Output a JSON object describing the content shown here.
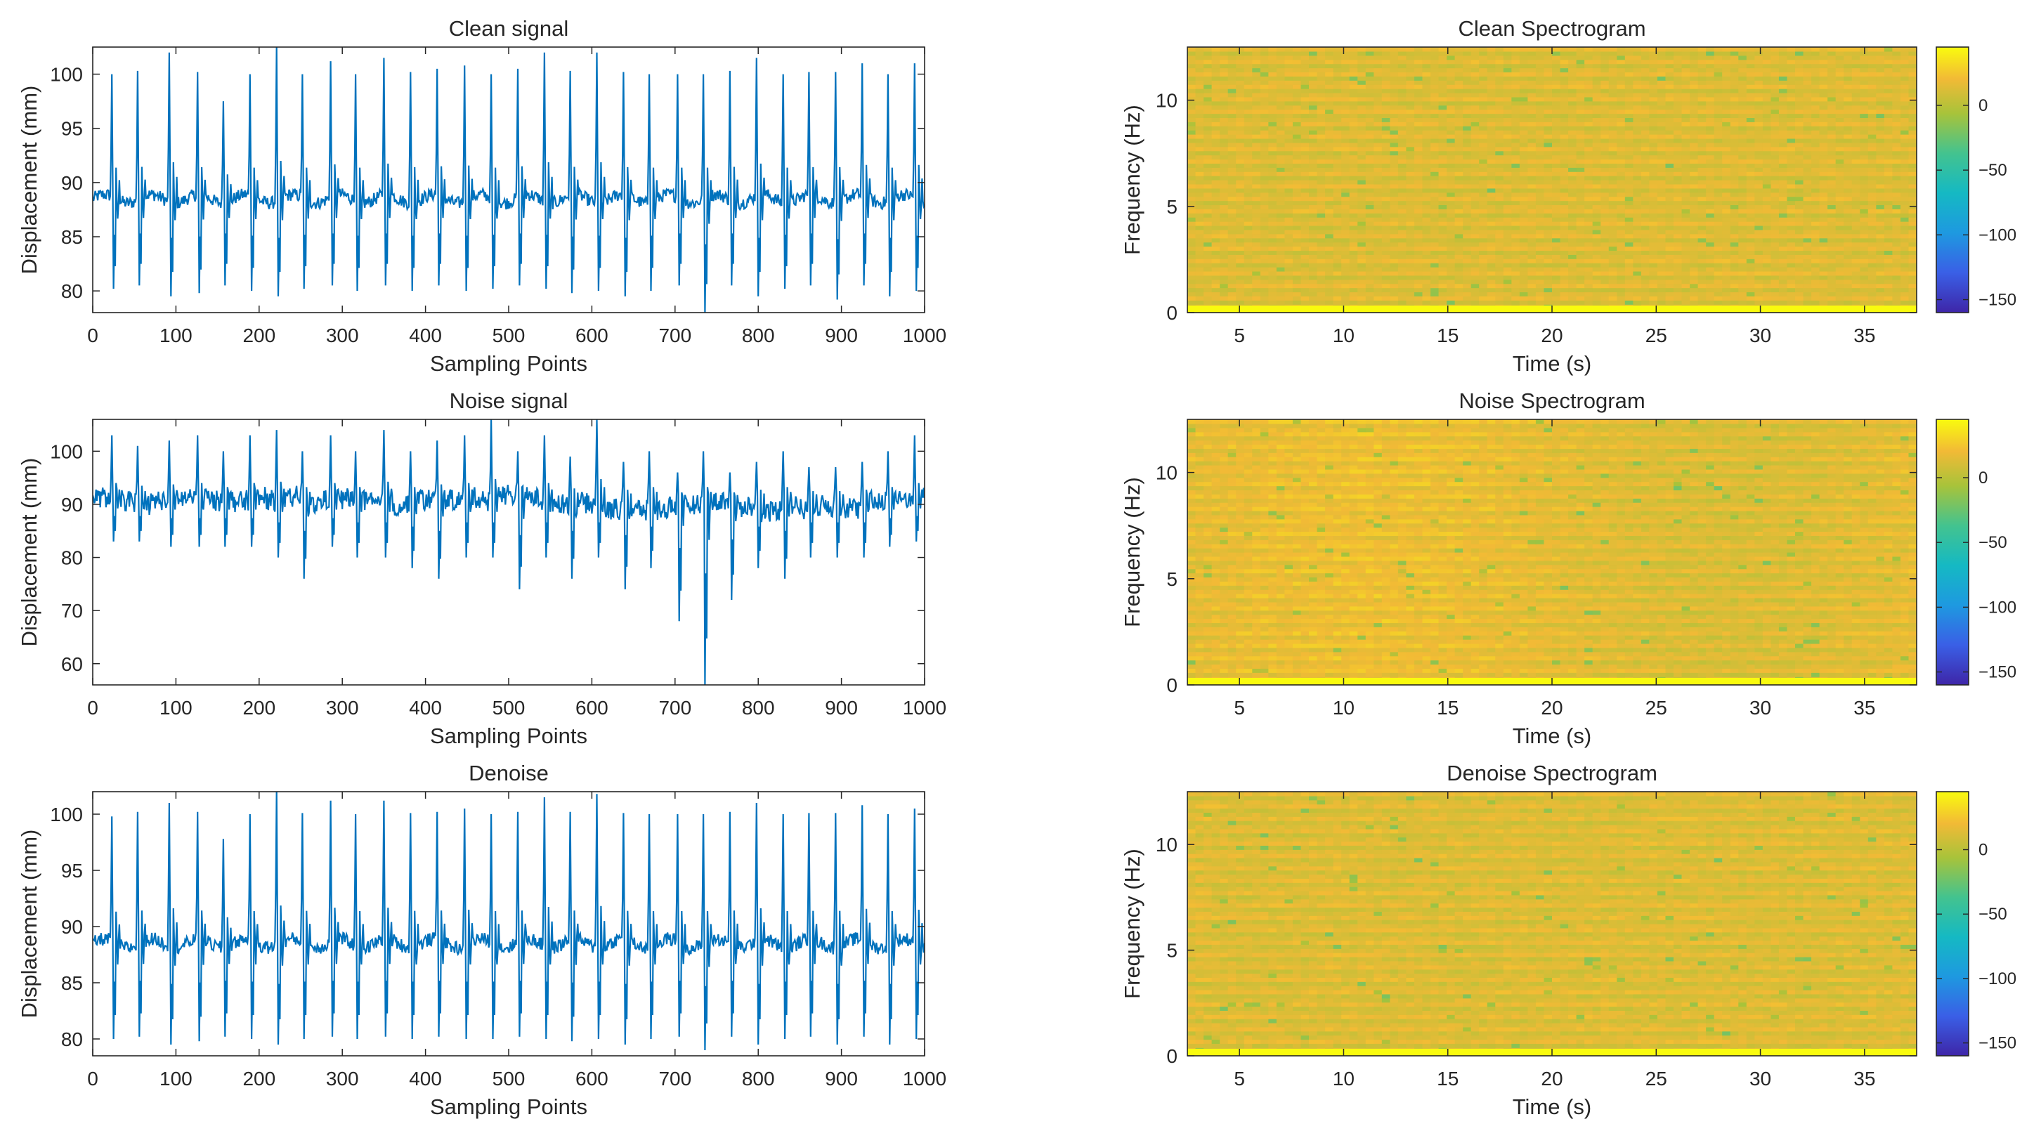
{
  "colors": {
    "line": "#0072BD",
    "axis": "#262626",
    "colormap": "parula"
  },
  "chart_data": [
    {
      "id": "clean-signal",
      "type": "line",
      "title": "Clean signal",
      "xlabel": "Sampling Points",
      "ylabel": "Displacement (mm)",
      "xlim": [
        0,
        1000
      ],
      "ylim": [
        78,
        102.5
      ],
      "xticks": [
        0,
        100,
        200,
        300,
        400,
        500,
        600,
        700,
        800,
        900,
        1000
      ],
      "yticks": [
        80,
        85,
        90,
        95,
        100
      ],
      "signal": {
        "baseline": 88.5,
        "peak_positions": [
          25,
          56,
          94,
          128,
          159,
          191,
          223,
          254,
          288,
          318,
          352,
          384,
          416,
          449,
          481,
          513,
          545,
          576,
          608,
          640,
          671,
          705,
          736,
          768,
          800,
          832,
          863,
          895,
          927,
          958,
          990
        ],
        "peak_highs": [
          100,
          100.3,
          102,
          100.2,
          97.5,
          100,
          102.5,
          100,
          101.2,
          100,
          101.5,
          100.2,
          100.5,
          100.8,
          100,
          100.5,
          102,
          100.3,
          102,
          100.2,
          100,
          100,
          100,
          100.3,
          101.5,
          100,
          100.2,
          100.2,
          101,
          100,
          101
        ],
        "trough_lows": [
          80.2,
          80.5,
          79.5,
          79.8,
          80.5,
          80,
          79.5,
          80.2,
          80.5,
          80,
          80.5,
          80,
          80.5,
          80,
          80.2,
          80.5,
          80.2,
          79.8,
          80,
          79.5,
          80,
          80.5,
          78,
          80.5,
          79.5,
          80.2,
          80.5,
          79.2,
          80.5,
          79.5,
          80
        ]
      }
    },
    {
      "id": "clean-spectrogram",
      "type": "heatmap",
      "title": "Clean Spectrogram",
      "xlabel": "Time (s)",
      "ylabel": "Frequency (Hz)",
      "xlim": [
        2.5,
        37.5
      ],
      "ylim": [
        0,
        12.5
      ],
      "xticks": [
        5,
        10,
        15,
        20,
        25,
        30,
        35
      ],
      "yticks": [
        0,
        5,
        10
      ],
      "colorbar": {
        "range": [
          -160,
          45
        ],
        "ticks": [
          0,
          -50,
          -100,
          -150
        ]
      }
    },
    {
      "id": "noise-signal",
      "type": "line",
      "title": "Noise signal",
      "xlabel": "Sampling Points",
      "ylabel": "Displacement (mm)",
      "xlim": [
        0,
        1000
      ],
      "ylim": [
        56,
        106
      ],
      "xticks": [
        0,
        100,
        200,
        300,
        400,
        500,
        600,
        700,
        800,
        900,
        1000
      ],
      "yticks": [
        60,
        70,
        80,
        90,
        100
      ],
      "signal": {
        "baseline": 91,
        "peak_positions": [
          25,
          56,
          94,
          128,
          159,
          191,
          223,
          254,
          288,
          318,
          352,
          384,
          416,
          449,
          481,
          513,
          545,
          576,
          608,
          640,
          671,
          705,
          736,
          768,
          800,
          832,
          863,
          895,
          927,
          958,
          990
        ],
        "peak_highs": [
          103,
          101,
          102,
          103,
          100,
          103,
          104,
          100,
          103,
          100,
          104,
          100,
          102,
          103,
          106,
          100,
          103,
          99,
          106,
          98,
          100,
          96,
          100,
          96,
          98,
          100,
          97,
          97,
          98,
          100,
          103
        ],
        "trough_lows": [
          83,
          83,
          82,
          82,
          82,
          82,
          80,
          76,
          82,
          80,
          80,
          78,
          76,
          80,
          80,
          74,
          80,
          76,
          80,
          74,
          78,
          68,
          56,
          72,
          78,
          76,
          80,
          80,
          80,
          82,
          83
        ]
      }
    },
    {
      "id": "noise-spectrogram",
      "type": "heatmap",
      "title": "Noise Spectrogram",
      "xlabel": "Time (s)",
      "ylabel": "Frequency (Hz)",
      "xlim": [
        2.5,
        37.5
      ],
      "ylim": [
        0,
        12.5
      ],
      "xticks": [
        5,
        10,
        15,
        20,
        25,
        30,
        35
      ],
      "yticks": [
        0,
        5,
        10
      ],
      "colorbar": {
        "range": [
          -160,
          45
        ],
        "ticks": [
          0,
          -50,
          -100,
          -150
        ]
      }
    },
    {
      "id": "denoise-signal",
      "type": "line",
      "title": "Denoise",
      "xlabel": "Sampling Points",
      "ylabel": "Displacement (mm)",
      "xlim": [
        0,
        1000
      ],
      "ylim": [
        78.5,
        102
      ],
      "xticks": [
        0,
        100,
        200,
        300,
        400,
        500,
        600,
        700,
        800,
        900,
        1000
      ],
      "yticks": [
        80,
        85,
        90,
        95,
        100
      ],
      "signal": {
        "baseline": 88.5,
        "peak_positions": [
          25,
          56,
          94,
          128,
          159,
          191,
          223,
          254,
          288,
          318,
          352,
          384,
          416,
          449,
          481,
          513,
          545,
          576,
          608,
          640,
          671,
          705,
          736,
          768,
          800,
          832,
          863,
          895,
          927,
          958,
          990
        ],
        "peak_highs": [
          99.8,
          100.2,
          101,
          100.2,
          97.8,
          100,
          102,
          100.1,
          101.2,
          100,
          101.2,
          100.1,
          100.2,
          100.5,
          100,
          100.2,
          101.5,
          100.2,
          101.8,
          100.1,
          100,
          100,
          100,
          100.2,
          101,
          100,
          100.1,
          100.1,
          100.8,
          100,
          100.5
        ],
        "trough_lows": [
          80,
          80.2,
          79.5,
          79.8,
          80.2,
          80,
          79.5,
          80,
          80.2,
          80,
          80.2,
          80,
          80.2,
          80,
          80,
          80.2,
          80,
          79.8,
          80,
          79.5,
          80,
          80.2,
          79,
          80.2,
          79.5,
          80,
          80.2,
          79.5,
          80.2,
          79.5,
          80
        ]
      }
    },
    {
      "id": "denoise-spectrogram",
      "type": "heatmap",
      "title": "Denoise Spectrogram",
      "xlabel": "Time (s)",
      "ylabel": "Frequency (Hz)",
      "xlim": [
        2.5,
        37.5
      ],
      "ylim": [
        0,
        12.5
      ],
      "xticks": [
        5,
        10,
        15,
        20,
        25,
        30,
        35
      ],
      "yticks": [
        0,
        5,
        10
      ],
      "colorbar": {
        "range": [
          -160,
          45
        ],
        "ticks": [
          0,
          -50,
          -100,
          -150
        ]
      }
    }
  ]
}
